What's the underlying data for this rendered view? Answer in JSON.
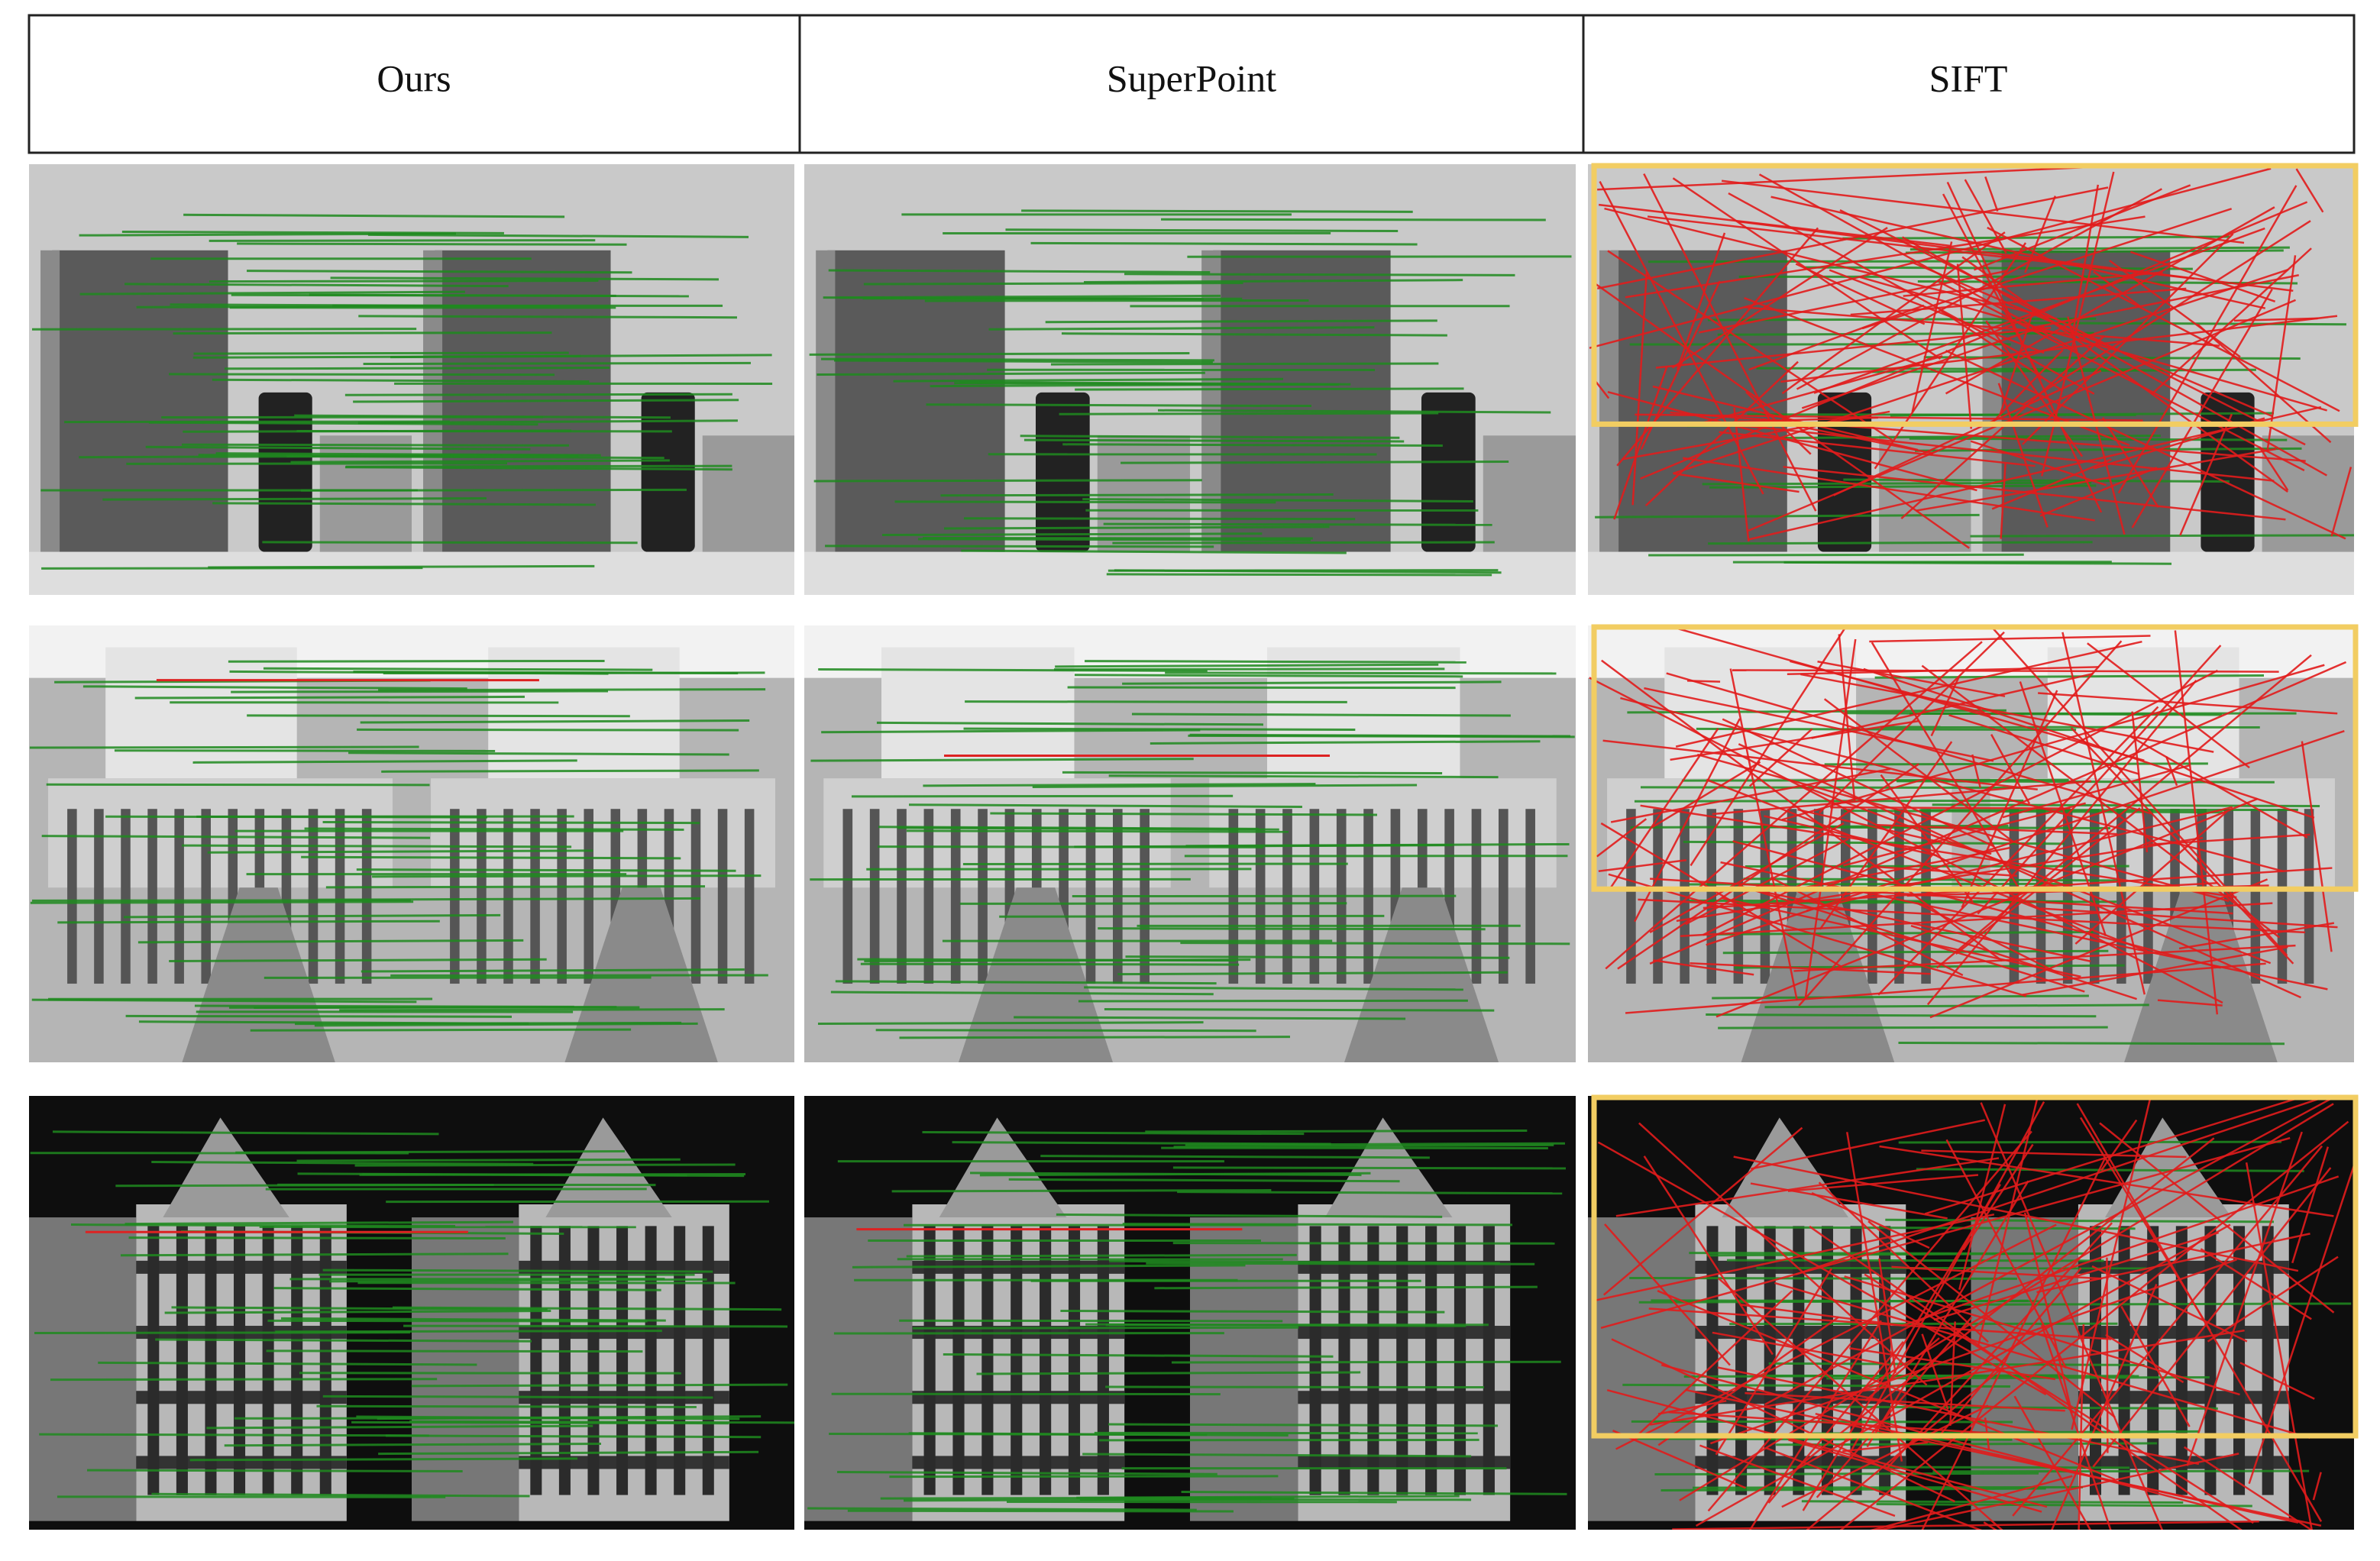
{
  "header": {
    "columns": [
      "Ours",
      "SuperPoint",
      "SIFT"
    ]
  }
}
